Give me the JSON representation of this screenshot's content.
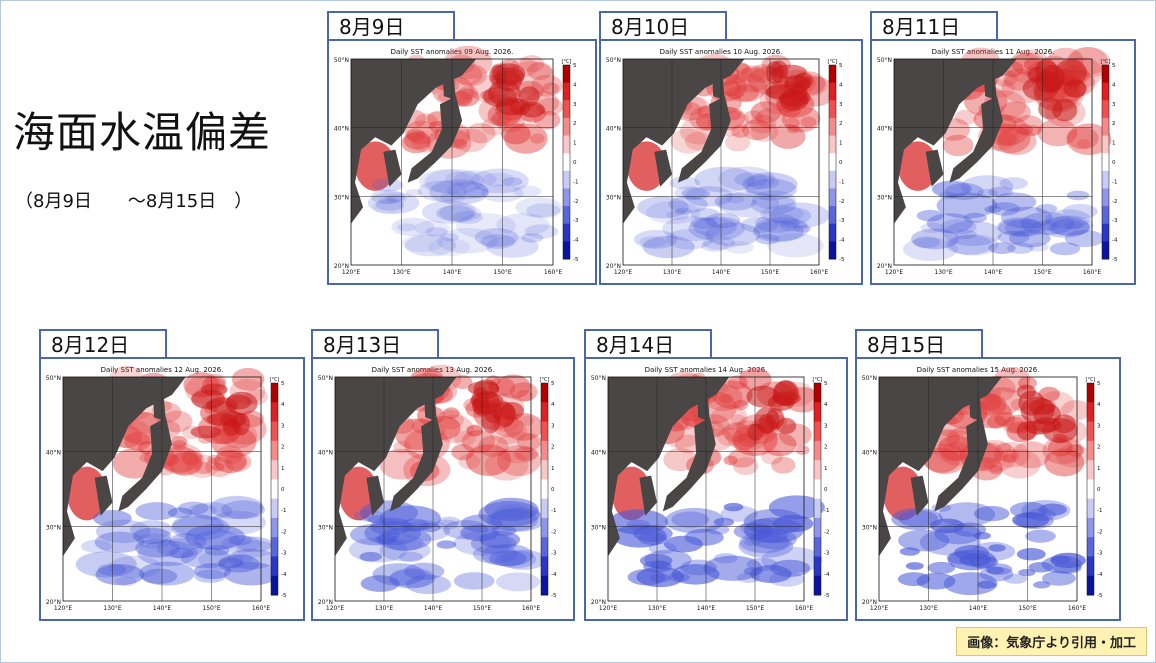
{
  "title": "海面水温偏差",
  "date_range": "（8月9日　　～8月15日　）",
  "credit": "画像：気象庁より引用・加工",
  "colors": {
    "frame": "#4a68a8",
    "land": "#4a4646",
    "warm": "#e03a3a",
    "cool": "#4a5ad8",
    "neutral": "#ffffff"
  },
  "colorbar_ticks": [
    "5",
    "4",
    "3",
    "2",
    "1",
    "0",
    "-1",
    "-2",
    "-3",
    "-4",
    "-5"
  ],
  "colorbar_unit": "[°C]",
  "lat_ticks": [
    "50°N",
    "40°N",
    "30°N",
    "20°N"
  ],
  "lon_ticks": [
    "120°E",
    "130°E",
    "140°E",
    "150°E",
    "160°E"
  ],
  "panels": [
    {
      "date": "8月9日",
      "map_title": "Daily SST anomalies 09 Aug. 2026."
    },
    {
      "date": "8月10日",
      "map_title": "Daily SST anomalies 10 Aug. 2026."
    },
    {
      "date": "8月11日",
      "map_title": "Daily SST anomalies 11 Aug. 2026."
    },
    {
      "date": "8月12日",
      "map_title": "Daily SST anomalies 12 Aug. 2026."
    },
    {
      "date": "8月13日",
      "map_title": "Daily SST anomalies 13 Aug. 2026."
    },
    {
      "date": "8月14日",
      "map_title": "Daily SST anomalies 14 Aug. 2026."
    },
    {
      "date": "8月15日",
      "map_title": "Daily SST anomalies 15 Aug. 2026."
    }
  ]
}
